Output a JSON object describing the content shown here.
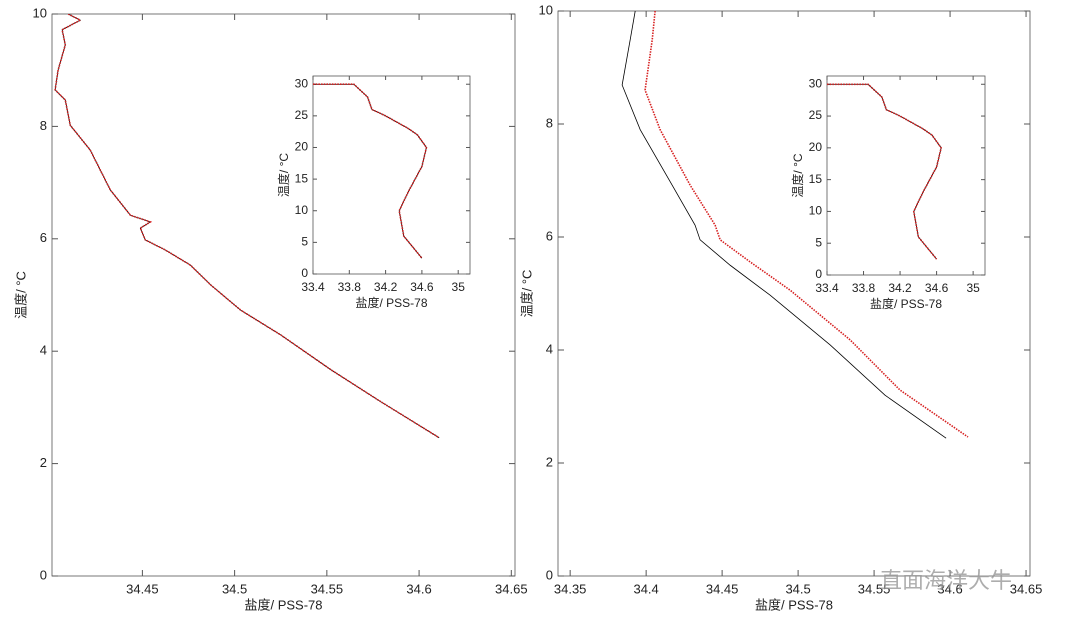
{
  "chart_data": [
    {
      "type": "line",
      "xlabel": "盐度/ PSS-78",
      "ylabel": "温度/ °C",
      "xlim": [
        34.401,
        34.652
      ],
      "ylim": [
        0,
        10
      ],
      "xticks": [
        34.45,
        34.5,
        34.55,
        34.6,
        34.65
      ],
      "yticks": [
        0,
        2,
        4,
        6,
        8,
        10
      ],
      "series": [
        {
          "color": "#000000",
          "linestyle": "solid",
          "x": [
            34.4098,
            34.4163,
            34.4065,
            34.4082,
            34.4043,
            34.4027,
            34.4082,
            34.4109,
            34.4217,
            34.4326,
            34.4435,
            34.4543,
            34.4489,
            34.4516,
            34.4625,
            34.4761,
            34.487,
            34.5033,
            34.525,
            34.5522,
            34.5793,
            34.6109
          ],
          "values": [
            10,
            9.89,
            9.72,
            9.45,
            9.0,
            8.65,
            8.47,
            8.02,
            7.58,
            6.87,
            6.42,
            6.3,
            6.19,
            5.98,
            5.8,
            5.53,
            5.18,
            4.73,
            4.29,
            3.67,
            3.1,
            2.46
          ]
        },
        {
          "color": "#d62020",
          "linestyle": "dotted",
          "x": [
            34.4098,
            34.4163,
            34.4065,
            34.4082,
            34.4043,
            34.4027,
            34.4082,
            34.4109,
            34.4217,
            34.4326,
            34.4435,
            34.4543,
            34.4489,
            34.4516,
            34.4625,
            34.4761,
            34.487,
            34.5033,
            34.525,
            34.5522,
            34.5793,
            34.6109
          ],
          "values": [
            10,
            9.89,
            9.72,
            9.45,
            9.0,
            8.65,
            8.47,
            8.02,
            7.58,
            6.87,
            6.42,
            6.3,
            6.19,
            5.98,
            5.8,
            5.53,
            5.18,
            4.73,
            4.29,
            3.67,
            3.1,
            2.46
          ]
        }
      ]
    },
    {
      "type": "line",
      "xlabel": "盐度/ PSS-78",
      "ylabel": "温度/ °C",
      "xlim": [
        33.4,
        35.13
      ],
      "ylim": [
        0,
        31.3
      ],
      "xticks": [
        33.4,
        33.8,
        34.2,
        34.6,
        35
      ],
      "yticks": [
        0,
        5,
        10,
        15,
        20,
        25,
        30
      ],
      "series": [
        {
          "color": "#000000",
          "linestyle": "solid",
          "x": [
            33.4,
            33.85,
            34.0,
            34.05,
            34.2,
            34.45,
            34.55,
            34.65,
            34.6,
            34.45,
            34.35,
            34.4,
            34.6
          ],
          "values": [
            30,
            30,
            28,
            26,
            25,
            23,
            22,
            20,
            17,
            13,
            10,
            6,
            2.5
          ]
        },
        {
          "color": "#d62020",
          "linestyle": "dotted",
          "x": [
            33.4,
            33.85,
            34.0,
            34.05,
            34.2,
            34.45,
            34.55,
            34.65,
            34.6,
            34.45,
            34.35,
            34.4,
            34.6
          ],
          "values": [
            30,
            30,
            28,
            26,
            25,
            23,
            22,
            20,
            17,
            13,
            10,
            6,
            2.5
          ]
        }
      ]
    },
    {
      "type": "line",
      "xlabel": "盐度/ PSS-78",
      "ylabel": "温度/ °C",
      "xlim": [
        34.342,
        34.6526
      ],
      "ylim": [
        0,
        10
      ],
      "xticks": [
        34.35,
        34.4,
        34.45,
        34.5,
        34.55,
        34.6,
        34.65
      ],
      "yticks": [
        0,
        2,
        4,
        6,
        8,
        10
      ],
      "series": [
        {
          "color": "#000000",
          "linestyle": "solid",
          "x": [
            34.3928,
            34.3895,
            34.3842,
            34.3961,
            34.4171,
            34.4322,
            34.4355,
            34.4553,
            34.4816,
            34.5211,
            34.5572,
            34.5974
          ],
          "values": [
            10,
            9.49,
            8.69,
            7.9,
            6.92,
            6.21,
            5.95,
            5.5,
            4.97,
            4.09,
            3.2,
            2.44
          ]
        },
        {
          "color": "#d62020",
          "linestyle": "dotted",
          "x": [
            34.4059,
            34.404,
            34.3993,
            34.4092,
            34.4289,
            34.4454,
            34.4487,
            34.4684,
            34.4947,
            34.5342,
            34.5671,
            34.6118
          ],
          "values": [
            10,
            9.49,
            8.6,
            7.9,
            6.92,
            6.21,
            5.95,
            5.56,
            5.06,
            4.18,
            3.29,
            2.46
          ]
        }
      ]
    },
    {
      "type": "line",
      "xlabel": "盐度/ PSS-78",
      "ylabel": "温度/ °C",
      "xlim": [
        33.4,
        35.13
      ],
      "ylim": [
        0,
        31.3
      ],
      "xticks": [
        33.4,
        33.8,
        34.2,
        34.6,
        35
      ],
      "yticks": [
        0,
        5,
        10,
        15,
        20,
        25,
        30
      ],
      "series": [
        {
          "color": "#000000",
          "linestyle": "solid",
          "x": [
            33.4,
            33.85,
            34.0,
            34.05,
            34.2,
            34.45,
            34.55,
            34.65,
            34.6,
            34.45,
            34.35,
            34.4,
            34.6
          ],
          "values": [
            30,
            30,
            28,
            26,
            25,
            23,
            22,
            20,
            17,
            13,
            10,
            6,
            2.5
          ]
        },
        {
          "color": "#d62020",
          "linestyle": "dotted",
          "x": [
            33.4,
            33.85,
            34.0,
            34.05,
            34.2,
            34.45,
            34.55,
            34.65,
            34.6,
            34.45,
            34.35,
            34.4,
            34.6
          ],
          "values": [
            30,
            30,
            28,
            26,
            25,
            23,
            22,
            20,
            17,
            13,
            10,
            6,
            2.5
          ]
        }
      ]
    }
  ],
  "watermark": "直面海洋大牛"
}
